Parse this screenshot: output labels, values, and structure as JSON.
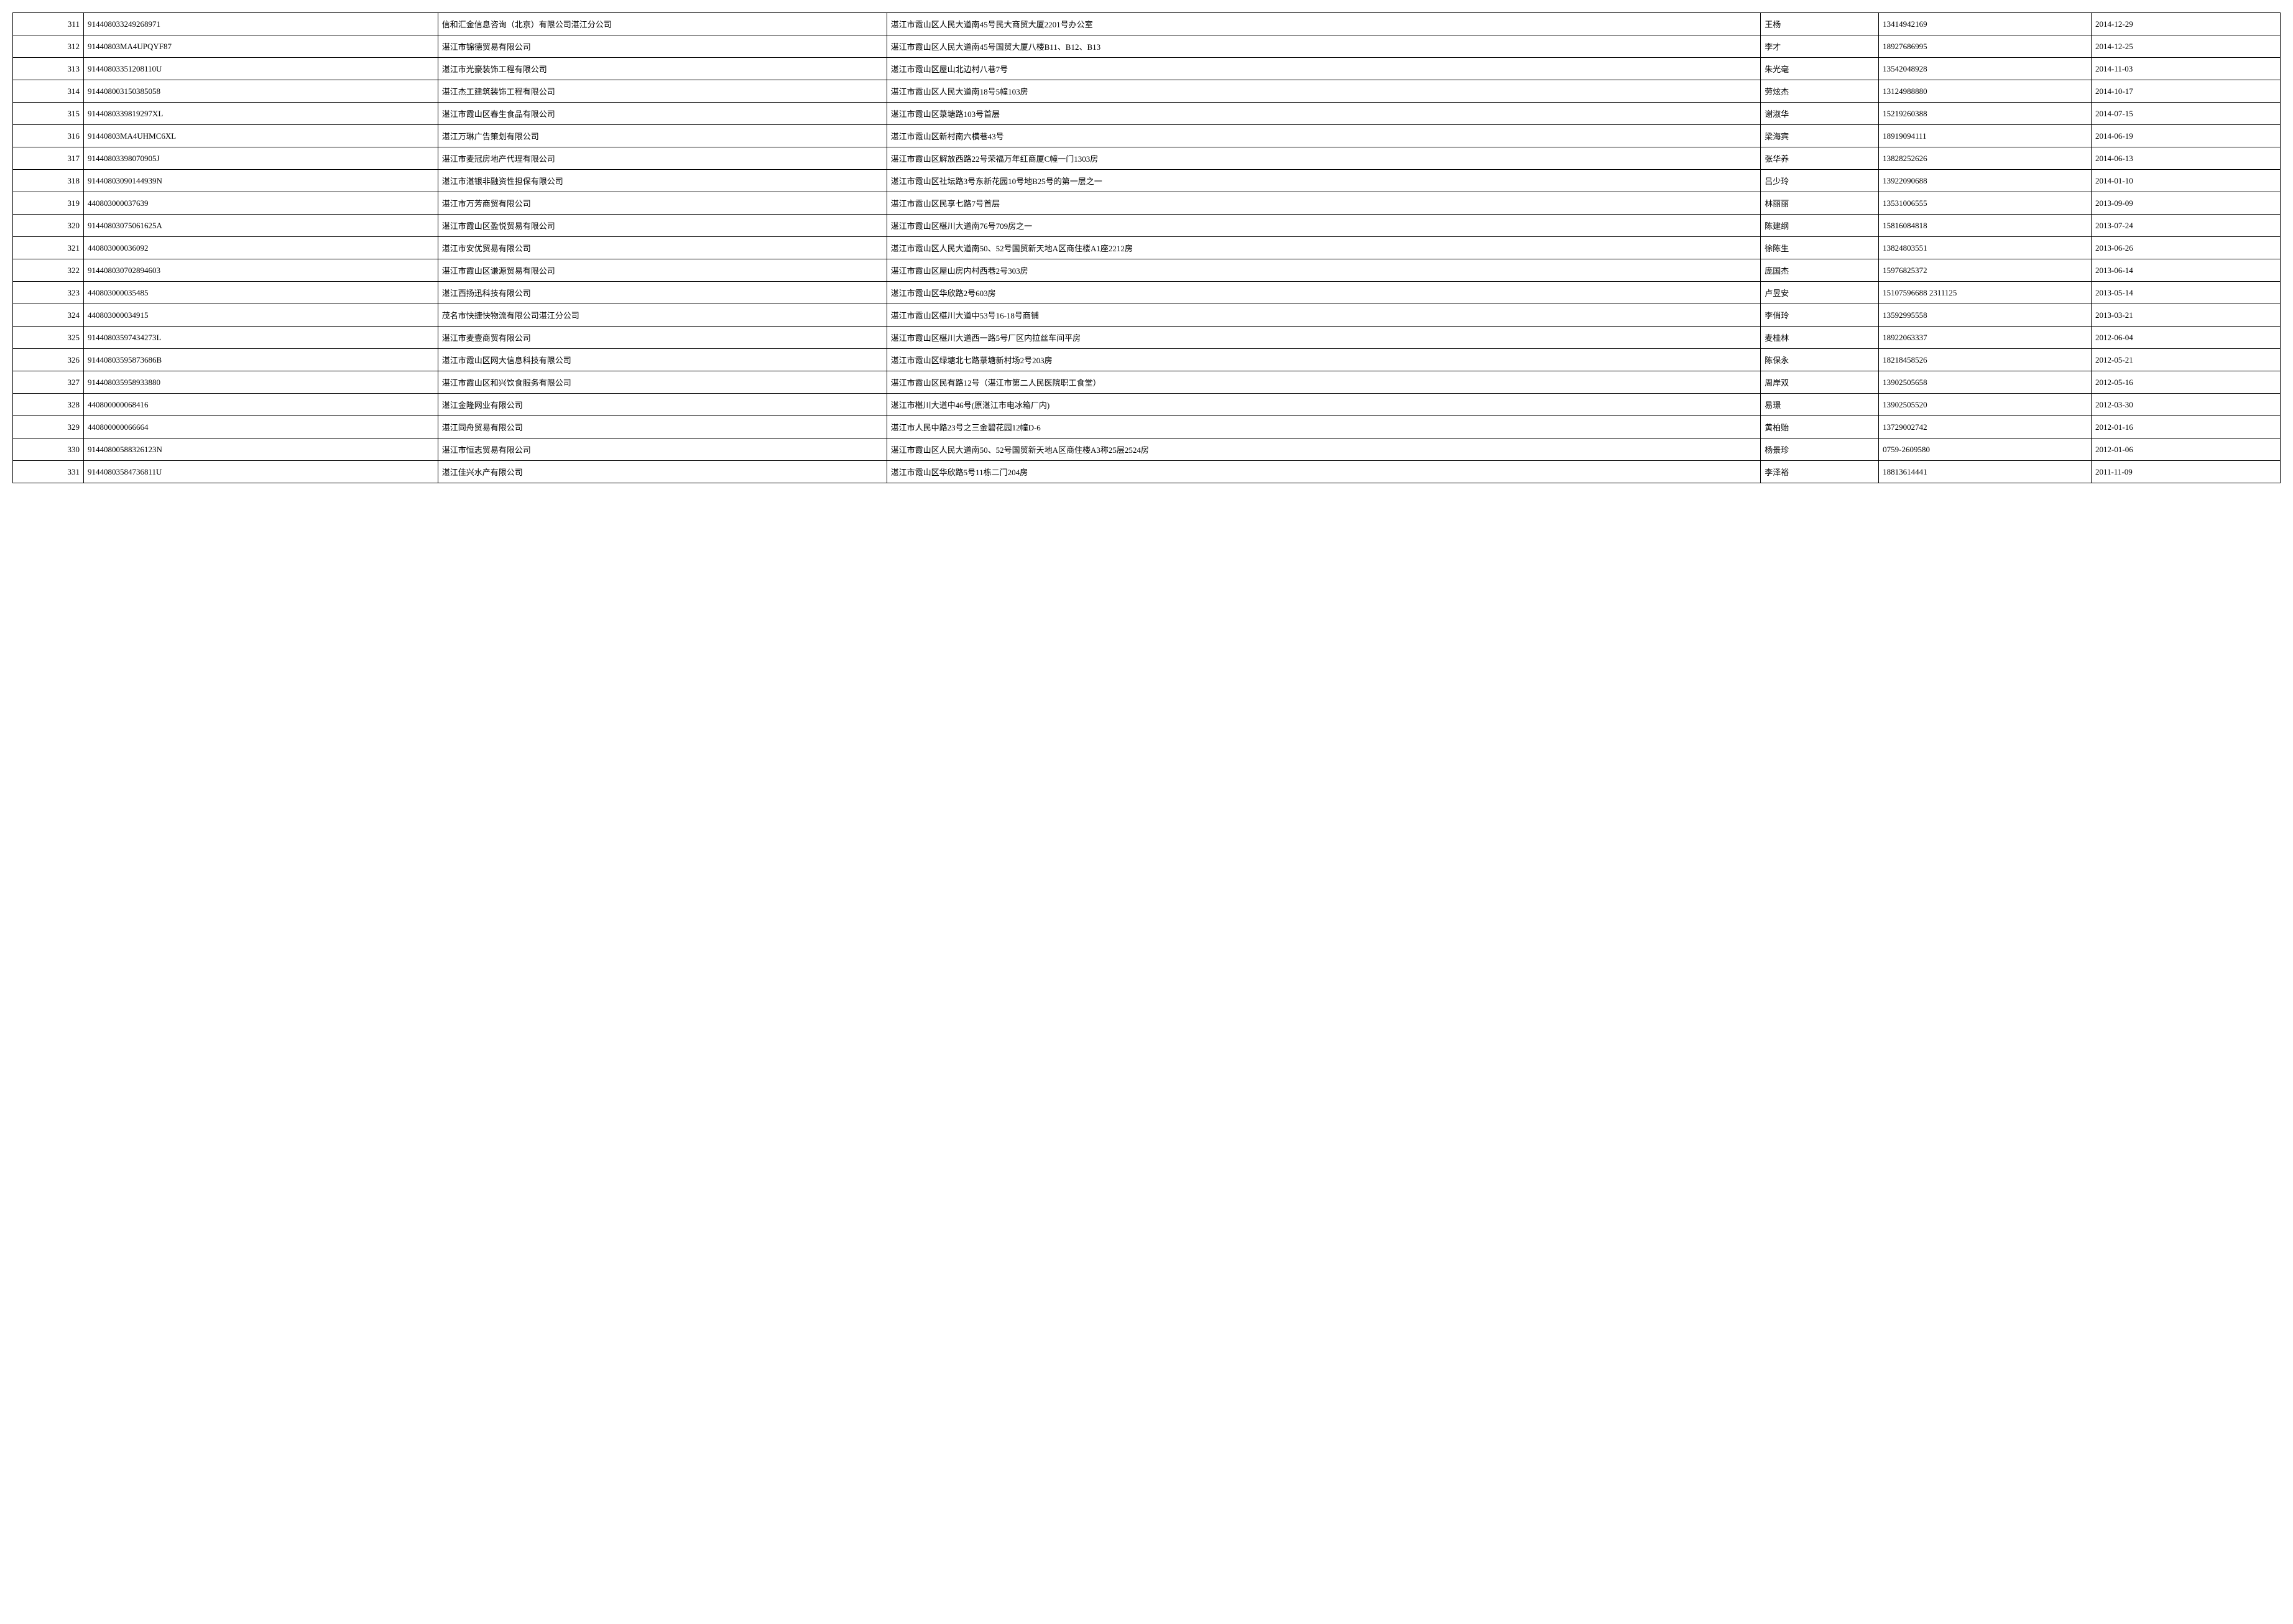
{
  "table": {
    "background_color": "#ffffff",
    "border_color": "#000000",
    "font_size": 13,
    "font_family": "SimSun",
    "columns": [
      {
        "key": "seq",
        "width": "3%",
        "align": "right"
      },
      {
        "key": "code",
        "width": "15%",
        "align": "left"
      },
      {
        "key": "company",
        "width": "19%",
        "align": "left"
      },
      {
        "key": "address",
        "width": "37%",
        "align": "left"
      },
      {
        "key": "person",
        "width": "5%",
        "align": "left"
      },
      {
        "key": "phone",
        "width": "9%",
        "align": "left"
      },
      {
        "key": "date",
        "width": "8%",
        "align": "left"
      }
    ],
    "rows": [
      {
        "seq": "311",
        "code": "914408033249268971",
        "company": "信和汇金信息咨询（北京）有限公司湛江分公司",
        "address": "湛江市霞山区人民大道南45号民大商贸大厦2201号办公室",
        "person": "王杨",
        "phone": "13414942169",
        "date": "2014-12-29"
      },
      {
        "seq": "312",
        "code": "91440803MA4UPQYF87",
        "company": "湛江市锦德贸易有限公司",
        "address": "湛江市霞山区人民大道南45号国贸大厦八楼B11、B12、B13",
        "person": "李才",
        "phone": "18927686995",
        "date": "2014-12-25"
      },
      {
        "seq": "313",
        "code": "91440803351208110U",
        "company": "湛江市光豪装饰工程有限公司",
        "address": "湛江市霞山区屋山北边村八巷7号",
        "person": "朱光毫",
        "phone": "13542048928",
        "date": "2014-11-03"
      },
      {
        "seq": "314",
        "code": "914408003150385058",
        "company": "湛江杰工建筑装饰工程有限公司",
        "address": "湛江市霞山区人民大道南18号5幢103房",
        "person": "劳炫杰",
        "phone": "13124988880",
        "date": "2014-10-17"
      },
      {
        "seq": "315",
        "code": "9144080339819297XL",
        "company": "湛江市霞山区春生食品有限公司",
        "address": "湛江市霞山区菉塘路103号首层",
        "person": "谢淑华",
        "phone": "15219260388",
        "date": "2014-07-15"
      },
      {
        "seq": "316",
        "code": "91440803MA4UHMC6XL",
        "company": "湛江万琳广告策划有限公司",
        "address": "湛江市霞山区新村南六横巷43号",
        "person": "梁海宾",
        "phone": "18919094111",
        "date": "2014-06-19"
      },
      {
        "seq": "317",
        "code": "91440803398070905J",
        "company": "湛江市麦冠房地产代理有限公司",
        "address": "湛江市霞山区解放西路22号荣福万年红商厦C幢一门1303房",
        "person": "张华养",
        "phone": "13828252626",
        "date": "2014-06-13"
      },
      {
        "seq": "318",
        "code": "91440803090144939N",
        "company": "湛江市湛银非融资性担保有限公司",
        "address": "湛江市霞山区社坛路3号东新花园10号地B25号的第一层之一",
        "person": "吕少玲",
        "phone": "13922090688",
        "date": "2014-01-10"
      },
      {
        "seq": "319",
        "code": "440803000037639",
        "company": "湛江市万芳商贸有限公司",
        "address": "湛江市霞山区民享七路7号首层",
        "person": "林丽丽",
        "phone": "13531006555",
        "date": "2013-09-09"
      },
      {
        "seq": "320",
        "code": "91440803075061625A",
        "company": "湛江市霞山区盈悦贸易有限公司",
        "address": "湛江市霞山区椹川大道南76号709房之一",
        "person": "陈建纲",
        "phone": "15816084818",
        "date": "2013-07-24"
      },
      {
        "seq": "321",
        "code": "440803000036092",
        "company": "湛江市安优贸易有限公司",
        "address": "湛江市霞山区人民大道南50、52号国贸新天地A区商住楼A1座2212房",
        "person": "徐陈生",
        "phone": "13824803551",
        "date": "2013-06-26"
      },
      {
        "seq": "322",
        "code": "914408030702894603",
        "company": "湛江市霞山区谦源贸易有限公司",
        "address": "湛江市霞山区屋山房内村西巷2号303房",
        "person": "庞国杰",
        "phone": "15976825372",
        "date": "2013-06-14"
      },
      {
        "seq": "323",
        "code": "440803000035485",
        "company": "湛江西扬迅科技有限公司",
        "address": "湛江市霞山区华欣路2号603房",
        "person": "卢昱安",
        "phone": "15107596688 2311125",
        "date": "2013-05-14"
      },
      {
        "seq": "324",
        "code": "440803000034915",
        "company": "茂名市快捷快物流有限公司湛江分公司",
        "address": "湛江市霞山区椹川大道中53号16-18号商铺",
        "person": "李俏玲",
        "phone": "13592995558",
        "date": "2013-03-21"
      },
      {
        "seq": "325",
        "code": "91440803597434273L",
        "company": "湛江市麦壹商贸有限公司",
        "address": "湛江市霞山区椹川大道西一路5号厂区内拉丝车间平房",
        "person": "麦桂林",
        "phone": "18922063337",
        "date": "2012-06-04"
      },
      {
        "seq": "326",
        "code": "91440803595873686B",
        "company": "湛江市霞山区网大信息科技有限公司",
        "address": "湛江市霞山区绿塘北七路菉塘新村场2号203房",
        "person": "陈保永",
        "phone": "18218458526",
        "date": "2012-05-21"
      },
      {
        "seq": "327",
        "code": "914408035958933880",
        "company": "湛江市霞山区和兴饮食服务有限公司",
        "address": "湛江市霞山区民有路12号（湛江市第二人民医院职工食堂）",
        "person": "周岸双",
        "phone": "13902505658",
        "date": "2012-05-16"
      },
      {
        "seq": "328",
        "code": "440800000068416",
        "company": "湛江金隆网业有限公司",
        "address": "湛江市椹川大道中46号(原湛江市电冰箱厂内)",
        "person": "易璟",
        "phone": "13902505520",
        "date": "2012-03-30"
      },
      {
        "seq": "329",
        "code": "440800000066664",
        "company": "湛江同舟贸易有限公司",
        "address": "湛江市人民中路23号之三金碧花园12幢D-6",
        "person": "黄柏贻",
        "phone": "13729002742",
        "date": "2012-01-16"
      },
      {
        "seq": "330",
        "code": "91440800588326123N",
        "company": "湛江市恒志贸易有限公司",
        "address": "湛江市霞山区人民大道南50、52号国贸新天地A区商住楼A3称25层2524房",
        "person": "杨景珍",
        "phone": "0759-2609580",
        "date": "2012-01-06"
      },
      {
        "seq": "331",
        "code": "91440803584736811U",
        "company": "湛江佳兴水产有限公司",
        "address": "湛江市霞山区华欣路5号11栋二门204房",
        "person": "李泽裕",
        "phone": "18813614441",
        "date": "2011-11-09"
      }
    ]
  }
}
